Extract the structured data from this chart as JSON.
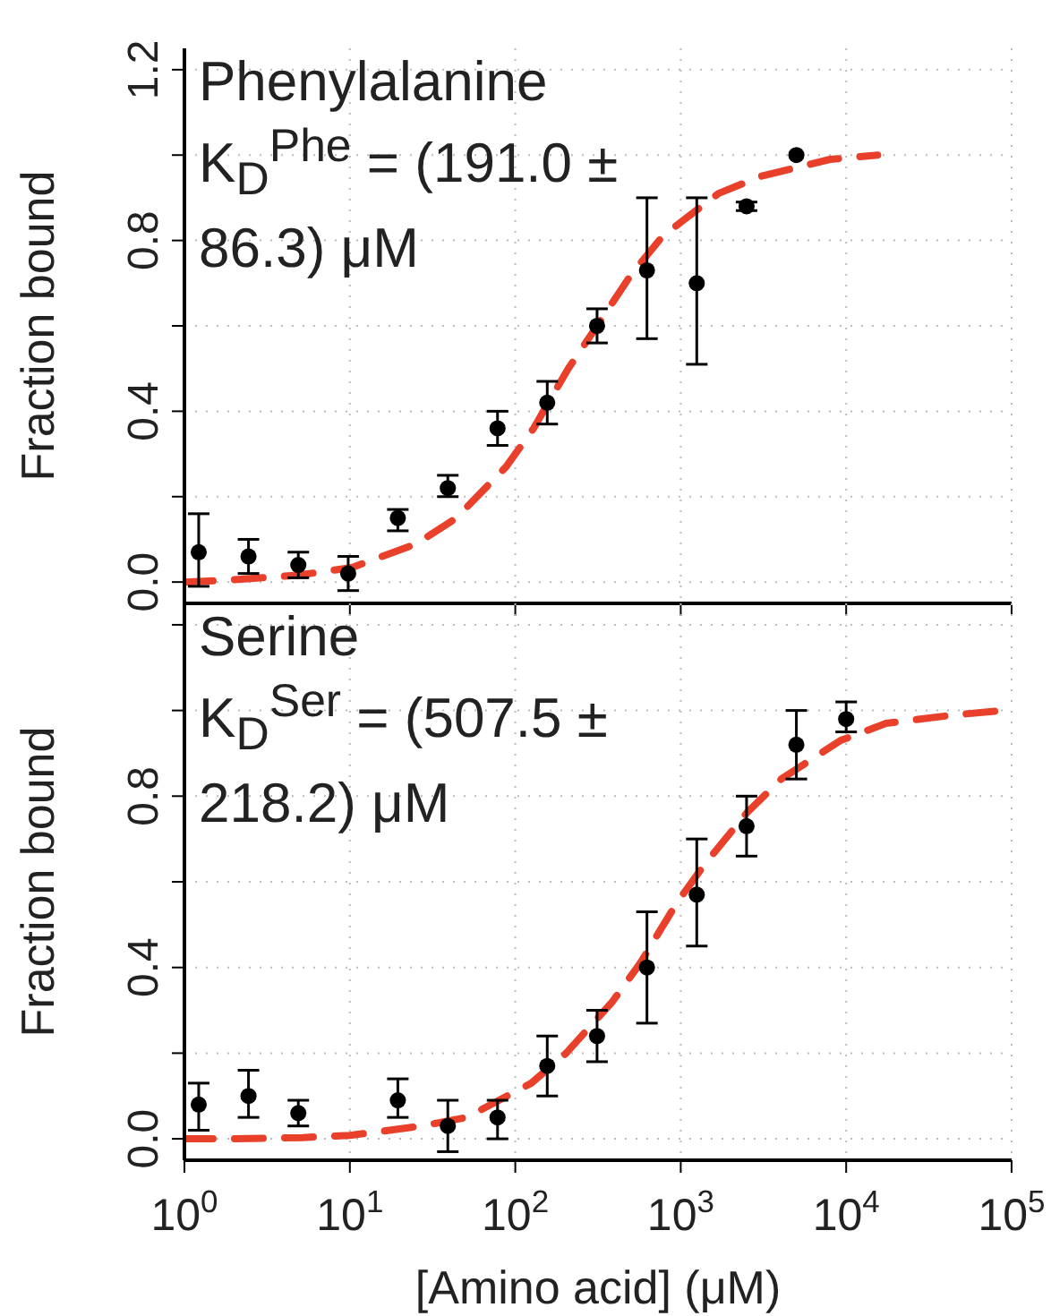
{
  "chart_data": [
    {
      "type": "scatter",
      "ylabel": "Fraction bound",
      "log": "x",
      "grid": true,
      "tick_labels": "y",
      "xlim": [
        1,
        100000
      ],
      "xticks": [
        {
          "value": 1,
          "label": null
        },
        {
          "value": 10,
          "label": null
        },
        {
          "value": 100,
          "label": null
        },
        {
          "value": 1000,
          "label": null
        },
        {
          "value": 10000,
          "label": null
        },
        {
          "value": 100000,
          "label": null
        }
      ],
      "ylim": [
        -0.05,
        1.25
      ],
      "yticks": [
        {
          "value": 0,
          "label": "0.0"
        },
        {
          "value": 0.2,
          "label": null
        },
        0.4,
        {
          "value": 0.6,
          "label": null
        },
        0.8,
        {
          "value": 1.0,
          "label": null
        },
        1.2
      ],
      "annotations": [
        "Phenylalanine",
        "K$_{D}$$^{Phe}$ = (191.0 ± 86.3) μM"
      ],
      "series": [
        {
          "type": "line",
          "color": "#e8402a",
          "line_style": "dashed",
          "marker": "none",
          "x": [
            1,
            1.94,
            4.87,
            10.3,
            25.4,
            44,
            88,
            129,
            209,
            300,
            501,
            776,
            1690,
            3030,
            8000,
            15500
          ],
          "values": [
            0,
            0.005,
            0.016,
            0.034,
            0.09,
            0.15,
            0.27,
            0.36,
            0.5,
            0.59,
            0.72,
            0.81,
            0.91,
            0.95,
            0.99,
            1.0
          ]
        },
        {
          "type": "scatter",
          "color": "#000000",
          "marker": "circle",
          "x": [
            1.22,
            2.44,
            4.88,
            9.77,
            19.5,
            39.1,
            78.1,
            156,
            312,
            625,
            1250,
            2500,
            5000
          ],
          "values": [
            0.07,
            0.06,
            0.04,
            0.02,
            0.15,
            0.22,
            0.36,
            0.42,
            0.6,
            0.73,
            0.7,
            0.88,
            1.0
          ],
          "errors": [
            [
              -0.01,
              0.16
            ],
            [
              0.02,
              0.1
            ],
            [
              0.01,
              0.07
            ],
            [
              -0.02,
              0.06
            ],
            [
              0.12,
              0.17
            ],
            [
              0.2,
              0.25
            ],
            [
              0.32,
              0.4
            ],
            [
              0.37,
              0.47
            ],
            [
              0.56,
              0.64
            ],
            [
              0.57,
              0.9
            ],
            [
              0.51,
              0.9
            ],
            [
              0.87,
              0.89
            ],
            null
          ]
        }
      ]
    },
    {
      "type": "scatter",
      "ylabel": "Fraction bound",
      "xlabel": "[Amino acid] (μM)",
      "log": "x",
      "grid": true,
      "xlim": [
        1,
        100000
      ],
      "xticks": [
        {
          "value": 1,
          "label": "10$^{0}$"
        },
        {
          "value": 10,
          "label": "10$^{1}$"
        },
        {
          "value": 100,
          "label": "10$^{2}$"
        },
        {
          "value": 1000,
          "label": "10$^{3}$"
        },
        {
          "value": 10000,
          "label": "10$^{4}$"
        },
        {
          "value": 100000,
          "label": "10$^{5}$"
        }
      ],
      "ylim": [
        -0.05,
        1.25
      ],
      "yticks": [
        {
          "value": 0,
          "label": "0.0"
        },
        {
          "value": 0.2,
          "label": null
        },
        0.4,
        {
          "value": 0.6,
          "label": null
        },
        0.8,
        {
          "value": 1.0,
          "label": null
        },
        {
          "value": 1.2,
          "label": null
        }
      ],
      "annotations": [
        "Serine",
        "K$_{D}$$^{Ser}$ = (507.5 ± 218.2) μM"
      ],
      "series": [
        {
          "type": "line",
          "color": "#e8402a",
          "line_style": "dashed",
          "marker": "none",
          "x": [
            1,
            1.88,
            5.2,
            10,
            27.2,
            51,
            125,
            203,
            386,
            569,
            944,
            1390,
            2494,
            4053,
            9250,
            17400,
            45900,
            90800
          ],
          "values": [
            0,
            0,
            0.003,
            0.008,
            0.03,
            0.05,
            0.13,
            0.2,
            0.32,
            0.41,
            0.55,
            0.64,
            0.76,
            0.84,
            0.93,
            0.97,
            0.99,
            1.0
          ]
        },
        {
          "type": "scatter",
          "color": "#000000",
          "marker": "circle",
          "x": [
            1.22,
            2.44,
            4.88,
            19.5,
            39.1,
            78.1,
            156,
            312,
            625,
            1250,
            2500,
            5000,
            10000
          ],
          "values": [
            0.08,
            0.1,
            0.06,
            0.09,
            0.03,
            0.05,
            0.17,
            0.24,
            0.4,
            0.57,
            0.73,
            0.92,
            0.98
          ],
          "errors": [
            [
              0.02,
              0.13
            ],
            [
              0.05,
              0.16
            ],
            [
              0.03,
              0.09
            ],
            [
              0.05,
              0.14
            ],
            [
              -0.03,
              0.09
            ],
            [
              0.0,
              0.09
            ],
            [
              0.1,
              0.24
            ],
            [
              0.18,
              0.3
            ],
            [
              0.27,
              0.53
            ],
            [
              0.45,
              0.7
            ],
            [
              0.66,
              0.8
            ],
            [
              0.84,
              1.0
            ],
            [
              0.95,
              1.02
            ]
          ]
        }
      ]
    }
  ]
}
